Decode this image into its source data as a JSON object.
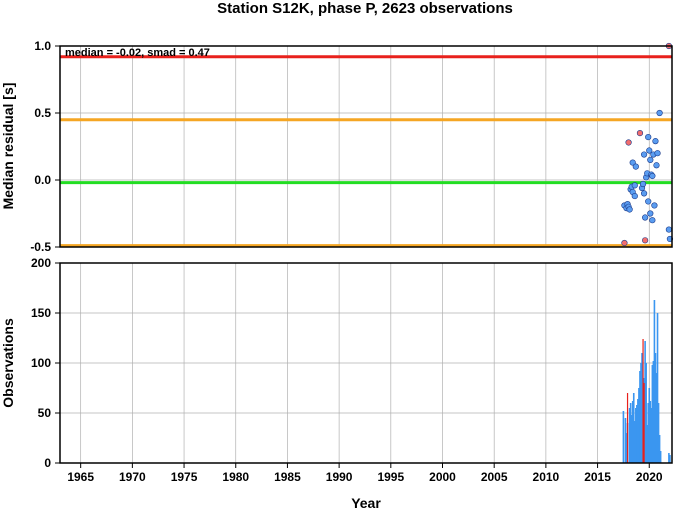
{
  "chart_data": [
    {
      "type": "scatter",
      "title": "Station S12K, phase P, 2623 observations",
      "ylabel": "Median residual [s]",
      "annotation": "median = -0.02, smad = 0.47",
      "xlim": [
        1963,
        2022.2
      ],
      "ylim": [
        -0.5,
        1.0
      ],
      "yticks": [
        "1.0",
        "0.5",
        "0.0",
        "-0.5"
      ],
      "grid": true,
      "hlines": [
        {
          "y": 0.92,
          "color": "#e8211c"
        },
        {
          "y": 0.45,
          "color": "#f5a623"
        },
        {
          "y": -0.02,
          "color": "#22dd22"
        },
        {
          "y": -0.49,
          "color": "#f5a623"
        }
      ],
      "colors": {
        "normal": "#5a9cf0",
        "outlier": "#f26d6d"
      },
      "series": [
        {
          "points": [
            [
              2017.6,
              -0.19
            ],
            [
              2017.8,
              -0.21
            ],
            [
              2017.9,
              -0.18
            ],
            [
              2018.0,
              -0.2
            ],
            [
              2018.1,
              -0.22
            ],
            [
              2018.2,
              -0.07
            ],
            [
              2018.3,
              -0.05
            ],
            [
              2018.4,
              -0.09
            ],
            [
              2018.4,
              0.13
            ],
            [
              2018.6,
              -0.12
            ],
            [
              2018.6,
              -0.04
            ],
            [
              2018.7,
              0.1
            ],
            [
              2019.3,
              -0.06
            ],
            [
              2019.4,
              -0.03
            ],
            [
              2019.5,
              0.19
            ],
            [
              2019.5,
              -0.1
            ],
            [
              2019.6,
              -0.28
            ],
            [
              2019.7,
              0.02
            ],
            [
              2019.8,
              0.05
            ],
            [
              2019.9,
              -0.16
            ],
            [
              2019.9,
              0.32
            ],
            [
              2020.0,
              0.22
            ],
            [
              2020.1,
              0.15
            ],
            [
              2020.1,
              -0.25
            ],
            [
              2020.2,
              0.04
            ],
            [
              2020.3,
              -0.3
            ],
            [
              2020.3,
              0.03
            ],
            [
              2020.4,
              0.19
            ],
            [
              2020.5,
              -0.19
            ],
            [
              2020.6,
              0.29
            ],
            [
              2020.7,
              0.11
            ],
            [
              2020.8,
              0.2
            ],
            [
              2021.0,
              0.5
            ],
            [
              2021.9,
              -0.37
            ],
            [
              2022.0,
              -0.44
            ]
          ]
        },
        {
          "points": [
            [
              2017.6,
              -0.47
            ],
            [
              2018.0,
              0.28
            ],
            [
              2019.1,
              0.35
            ],
            [
              2019.6,
              -0.45
            ],
            [
              2021.9,
              1.0
            ]
          ]
        }
      ]
    },
    {
      "type": "bar",
      "xlabel": "Year",
      "ylabel": "Observations",
      "xlim": [
        1963,
        2022.2
      ],
      "ylim": [
        0,
        200
      ],
      "yticks": [
        "200",
        "150",
        "100",
        "50",
        "0"
      ],
      "xticks": [
        "1965",
        "1970",
        "1975",
        "1980",
        "1985",
        "1990",
        "1995",
        "2000",
        "2005",
        "2010",
        "2015",
        "2020"
      ],
      "grid": true,
      "colors": {
        "normal": "#3b96f0",
        "outlier": "#e8211c"
      },
      "bars": [
        {
          "x": 2017.5,
          "value": 52
        },
        {
          "x": 2017.7,
          "value": 45
        },
        {
          "x": 2017.8,
          "value": 30
        },
        {
          "x": 2017.9,
          "value": 40
        },
        {
          "x": 2018.1,
          "value": 55
        },
        {
          "x": 2018.2,
          "value": 60
        },
        {
          "x": 2018.3,
          "value": 48
        },
        {
          "x": 2018.4,
          "value": 62
        },
        {
          "x": 2018.5,
          "value": 70
        },
        {
          "x": 2018.6,
          "value": 42
        },
        {
          "x": 2018.7,
          "value": 55
        },
        {
          "x": 2018.8,
          "value": 58
        },
        {
          "x": 2018.9,
          "value": 64
        },
        {
          "x": 2019.0,
          "value": 75
        },
        {
          "x": 2019.1,
          "value": 92
        },
        {
          "x": 2019.2,
          "value": 100
        },
        {
          "x": 2019.3,
          "value": 110
        },
        {
          "x": 2019.5,
          "value": 85
        },
        {
          "x": 2019.6,
          "value": 122
        },
        {
          "x": 2019.7,
          "value": 100
        },
        {
          "x": 2019.8,
          "value": 38
        },
        {
          "x": 2019.9,
          "value": 60
        },
        {
          "x": 2020.0,
          "value": 75
        },
        {
          "x": 2020.1,
          "value": 62
        },
        {
          "x": 2020.2,
          "value": 55
        },
        {
          "x": 2020.3,
          "value": 98
        },
        {
          "x": 2020.4,
          "value": 102
        },
        {
          "x": 2020.5,
          "value": 163
        },
        {
          "x": 2020.6,
          "value": 110
        },
        {
          "x": 2020.7,
          "value": 90
        },
        {
          "x": 2020.8,
          "value": 150
        },
        {
          "x": 2020.9,
          "value": 60
        },
        {
          "x": 2021.0,
          "value": 28
        },
        {
          "x": 2021.1,
          "value": 12
        },
        {
          "x": 2021.9,
          "value": 10
        },
        {
          "x": 2022.0,
          "value": 8
        }
      ],
      "outlier_bars": [
        {
          "x": 2017.9,
          "value": 70
        },
        {
          "x": 2019.4,
          "value": 124
        },
        {
          "x": 2019.5,
          "value": 80
        }
      ]
    }
  ]
}
